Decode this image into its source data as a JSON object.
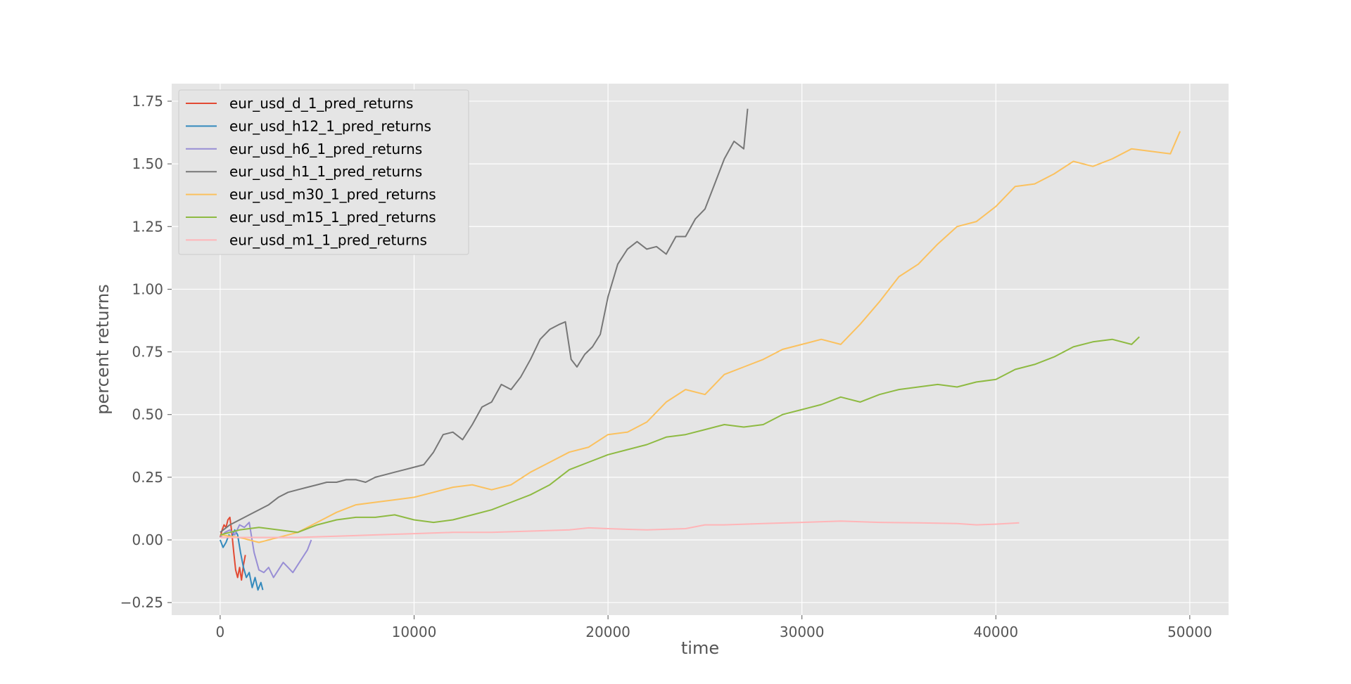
{
  "chart_data": {
    "type": "line",
    "title": "",
    "xlabel": "time",
    "ylabel": "percent returns",
    "xlim": [
      -2500,
      52000
    ],
    "ylim": [
      -0.3,
      1.82
    ],
    "xticks": [
      0,
      10000,
      20000,
      30000,
      40000,
      50000
    ],
    "xtick_labels": [
      "0",
      "10000",
      "20000",
      "30000",
      "40000",
      "50000"
    ],
    "yticks": [
      -0.25,
      0.0,
      0.25,
      0.5,
      0.75,
      1.0,
      1.25,
      1.5,
      1.75
    ],
    "ytick_labels": [
      "−0.25",
      "0.00",
      "0.25",
      "0.50",
      "0.75",
      "1.00",
      "1.25",
      "1.50",
      "1.75"
    ],
    "grid": true,
    "legend_position": "top-left",
    "style": {
      "background": "#e5e5e5",
      "grid_color": "#ffffff",
      "tick_color": "#555555"
    },
    "series": [
      {
        "name": "eur_usd_d_1_pred_returns",
        "color": "#e24a33",
        "x": [
          0,
          100,
          200,
          300,
          400,
          500,
          600,
          700,
          800,
          900,
          1000,
          1100,
          1200,
          1300
        ],
        "y": [
          0.01,
          0.04,
          0.06,
          0.05,
          0.08,
          0.09,
          0.03,
          -0.05,
          -0.12,
          -0.15,
          -0.11,
          -0.16,
          -0.1,
          -0.06
        ]
      },
      {
        "name": "eur_usd_h12_1_pred_returns",
        "color": "#348abd",
        "x": [
          0,
          150,
          300,
          450,
          600,
          750,
          900,
          1050,
          1200,
          1350,
          1500,
          1650,
          1800,
          1950,
          2100,
          2200
        ],
        "y": [
          0.0,
          -0.03,
          -0.01,
          0.02,
          0.01,
          0.04,
          0.02,
          -0.05,
          -0.11,
          -0.15,
          -0.13,
          -0.19,
          -0.15,
          -0.2,
          -0.17,
          -0.2
        ]
      },
      {
        "name": "eur_usd_h6_1_pred_returns",
        "color": "#988ed5",
        "x": [
          0,
          250,
          500,
          750,
          1000,
          1250,
          1500,
          1750,
          2000,
          2250,
          2500,
          2750,
          3000,
          3250,
          3500,
          3750,
          4000,
          4250,
          4500,
          4700
        ],
        "y": [
          0.01,
          0.03,
          0.04,
          0.02,
          0.06,
          0.05,
          0.07,
          -0.05,
          -0.12,
          -0.13,
          -0.11,
          -0.15,
          -0.12,
          -0.09,
          -0.11,
          -0.13,
          -0.1,
          -0.07,
          -0.04,
          0.0
        ]
      },
      {
        "name": "eur_usd_h1_1_pred_returns",
        "color": "#777777",
        "x": [
          0,
          500,
          1000,
          1500,
          2000,
          2500,
          3000,
          3500,
          4000,
          4500,
          5000,
          5500,
          6000,
          6500,
          7000,
          7500,
          8000,
          8500,
          9000,
          9500,
          10000,
          10500,
          11000,
          11500,
          12000,
          12500,
          13000,
          13500,
          14000,
          14500,
          15000,
          15500,
          16000,
          16500,
          17000,
          17500,
          17800,
          18100,
          18400,
          18800,
          19200,
          19600,
          20000,
          20500,
          21000,
          21500,
          22000,
          22500,
          23000,
          23500,
          24000,
          24500,
          25000,
          25500,
          26000,
          26500,
          27000,
          27200
        ],
        "y": [
          0.03,
          0.06,
          0.08,
          0.1,
          0.12,
          0.14,
          0.17,
          0.19,
          0.2,
          0.21,
          0.22,
          0.23,
          0.23,
          0.24,
          0.24,
          0.23,
          0.25,
          0.26,
          0.27,
          0.28,
          0.29,
          0.3,
          0.35,
          0.42,
          0.43,
          0.4,
          0.46,
          0.53,
          0.55,
          0.62,
          0.6,
          0.65,
          0.72,
          0.8,
          0.84,
          0.86,
          0.87,
          0.72,
          0.69,
          0.74,
          0.77,
          0.82,
          0.97,
          1.1,
          1.16,
          1.19,
          1.16,
          1.17,
          1.14,
          1.21,
          1.21,
          1.28,
          1.32,
          1.42,
          1.52,
          1.59,
          1.56,
          1.72
        ]
      },
      {
        "name": "eur_usd_m30_1_pred_returns",
        "color": "#fbc15e",
        "x": [
          0,
          1000,
          2000,
          3000,
          4000,
          5000,
          6000,
          7000,
          8000,
          9000,
          10000,
          11000,
          12000,
          13000,
          14000,
          15000,
          16000,
          17000,
          18000,
          19000,
          20000,
          21000,
          22000,
          23000,
          24000,
          25000,
          26000,
          27000,
          28000,
          29000,
          30000,
          31000,
          32000,
          33000,
          34000,
          35000,
          36000,
          37000,
          38000,
          39000,
          40000,
          41000,
          42000,
          43000,
          44000,
          45000,
          46000,
          47000,
          48000,
          49000,
          49500
        ],
        "y": [
          0.02,
          0.01,
          -0.01,
          0.01,
          0.03,
          0.07,
          0.11,
          0.14,
          0.15,
          0.16,
          0.17,
          0.19,
          0.21,
          0.22,
          0.2,
          0.22,
          0.27,
          0.31,
          0.35,
          0.37,
          0.42,
          0.43,
          0.47,
          0.55,
          0.6,
          0.58,
          0.66,
          0.69,
          0.72,
          0.76,
          0.78,
          0.8,
          0.78,
          0.86,
          0.95,
          1.05,
          1.1,
          1.18,
          1.25,
          1.27,
          1.33,
          1.41,
          1.42,
          1.46,
          1.51,
          1.49,
          1.52,
          1.56,
          1.55,
          1.54,
          1.63
        ]
      },
      {
        "name": "eur_usd_m15_1_pred_returns",
        "color": "#8eba42",
        "x": [
          0,
          1000,
          2000,
          3000,
          4000,
          5000,
          6000,
          7000,
          8000,
          9000,
          10000,
          11000,
          12000,
          13000,
          14000,
          15000,
          16000,
          17000,
          18000,
          19000,
          20000,
          21000,
          22000,
          23000,
          24000,
          25000,
          26000,
          27000,
          28000,
          29000,
          30000,
          31000,
          32000,
          33000,
          34000,
          35000,
          36000,
          37000,
          38000,
          39000,
          40000,
          41000,
          42000,
          43000,
          44000,
          45000,
          46000,
          47000,
          47400
        ],
        "y": [
          0.02,
          0.04,
          0.05,
          0.04,
          0.03,
          0.06,
          0.08,
          0.09,
          0.09,
          0.1,
          0.08,
          0.07,
          0.08,
          0.1,
          0.12,
          0.15,
          0.18,
          0.22,
          0.28,
          0.31,
          0.34,
          0.36,
          0.38,
          0.41,
          0.42,
          0.44,
          0.46,
          0.45,
          0.46,
          0.5,
          0.52,
          0.54,
          0.57,
          0.55,
          0.58,
          0.6,
          0.61,
          0.62,
          0.61,
          0.63,
          0.64,
          0.68,
          0.7,
          0.73,
          0.77,
          0.79,
          0.8,
          0.78,
          0.81
        ]
      },
      {
        "name": "eur_usd_m1_1_pred_returns",
        "color": "#ffb5b8",
        "x": [
          0,
          2000,
          4000,
          6000,
          8000,
          10000,
          12000,
          14000,
          16000,
          18000,
          19000,
          20000,
          22000,
          24000,
          25000,
          26000,
          28000,
          30000,
          32000,
          34000,
          36000,
          38000,
          39000,
          40000,
          41200
        ],
        "y": [
          0.01,
          0.01,
          0.01,
          0.015,
          0.02,
          0.025,
          0.03,
          0.03,
          0.035,
          0.04,
          0.048,
          0.045,
          0.04,
          0.045,
          0.06,
          0.06,
          0.065,
          0.07,
          0.075,
          0.07,
          0.068,
          0.065,
          0.06,
          0.063,
          0.068
        ]
      }
    ]
  }
}
